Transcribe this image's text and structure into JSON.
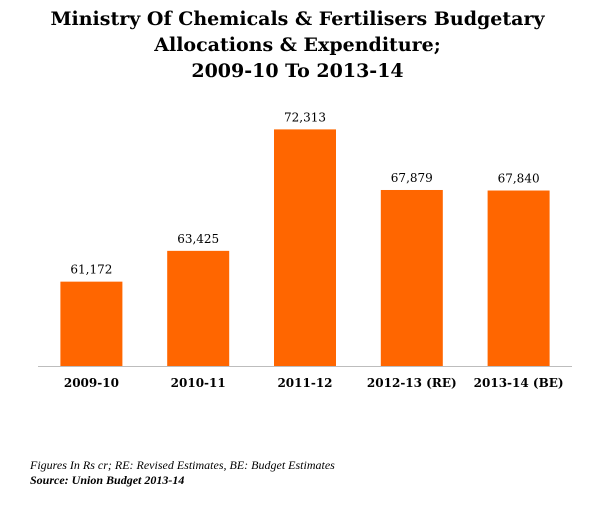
{
  "chart_data": {
    "type": "bar",
    "title_lines": [
      "Ministry Of Chemicals & Fertilisers Budgetary",
      "Allocations & Expenditure;",
      "2009-10 To 2013-14"
    ],
    "categories": [
      "2009-10",
      "2010-11",
      "2011-12",
      "2012-13 (RE)",
      "2013-14 (BE)"
    ],
    "values": [
      61172,
      63425,
      72313,
      67879,
      67840
    ],
    "data_labels": [
      "61,172",
      "63,425",
      "72,313",
      "67,879",
      "67,840"
    ],
    "xlabel": "",
    "ylabel": "",
    "ylim": [
      55000,
      73000
    ],
    "grid": false,
    "legend": "none",
    "bar_color": "#FF6600"
  },
  "notes": {
    "figures": "Figures In Rs cr; RE: Revised Estimates, BE: Budget Estimates",
    "source": "Source: Union Budget 2013-14"
  }
}
